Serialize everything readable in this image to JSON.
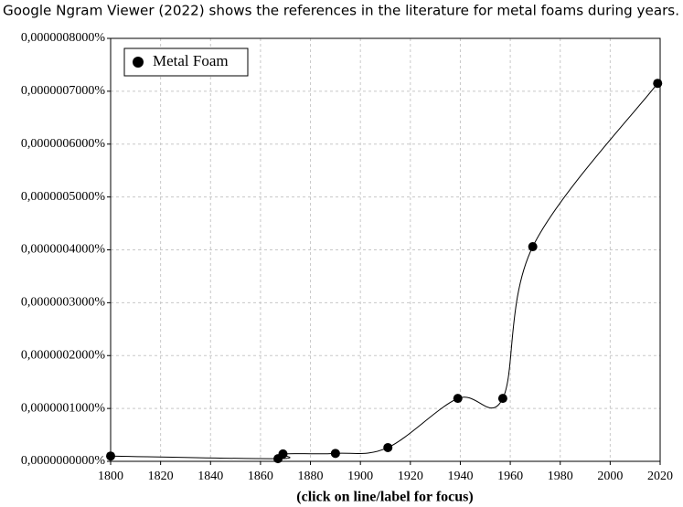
{
  "chart_data": {
    "type": "line",
    "title": "Google Ngram Viewer (2022) shows the references in the literature for metal foams during years.",
    "x_label": "(click on line/label for focus)",
    "x": [
      1800,
      1867,
      1869,
      1890,
      1911,
      1939,
      1957,
      1969,
      2019
    ],
    "series": [
      {
        "name": "Metal Foam",
        "color": "#000000",
        "values": [
          1e-08,
          5e-09,
          1.4e-08,
          1.5e-08,
          2.6e-08,
          1.19e-07,
          1.19e-07,
          4.06e-07,
          7.15e-07
        ]
      }
    ],
    "xlim": [
      1800,
      2020
    ],
    "xticks": [
      1800,
      1820,
      1840,
      1860,
      1880,
      1900,
      1920,
      1940,
      1960,
      1980,
      2000,
      2020
    ],
    "ylim": [
      0,
      8e-07
    ],
    "yticks": [
      {
        "value": 0,
        "label": "0,0000000000%"
      },
      {
        "value": 1e-07,
        "label": "0,0000001000%"
      },
      {
        "value": 2e-07,
        "label": "0,0000002000%"
      },
      {
        "value": 3e-07,
        "label": "0,0000003000%"
      },
      {
        "value": 4e-07,
        "label": "0,0000004000%"
      },
      {
        "value": 5e-07,
        "label": "0,0000005000%"
      },
      {
        "value": 6e-07,
        "label": "0,0000006000%"
      },
      {
        "value": 7e-07,
        "label": "0,0000007000%"
      },
      {
        "value": 8e-07,
        "label": "0,0000008000%"
      }
    ],
    "grid": true,
    "legend": "upper left"
  }
}
